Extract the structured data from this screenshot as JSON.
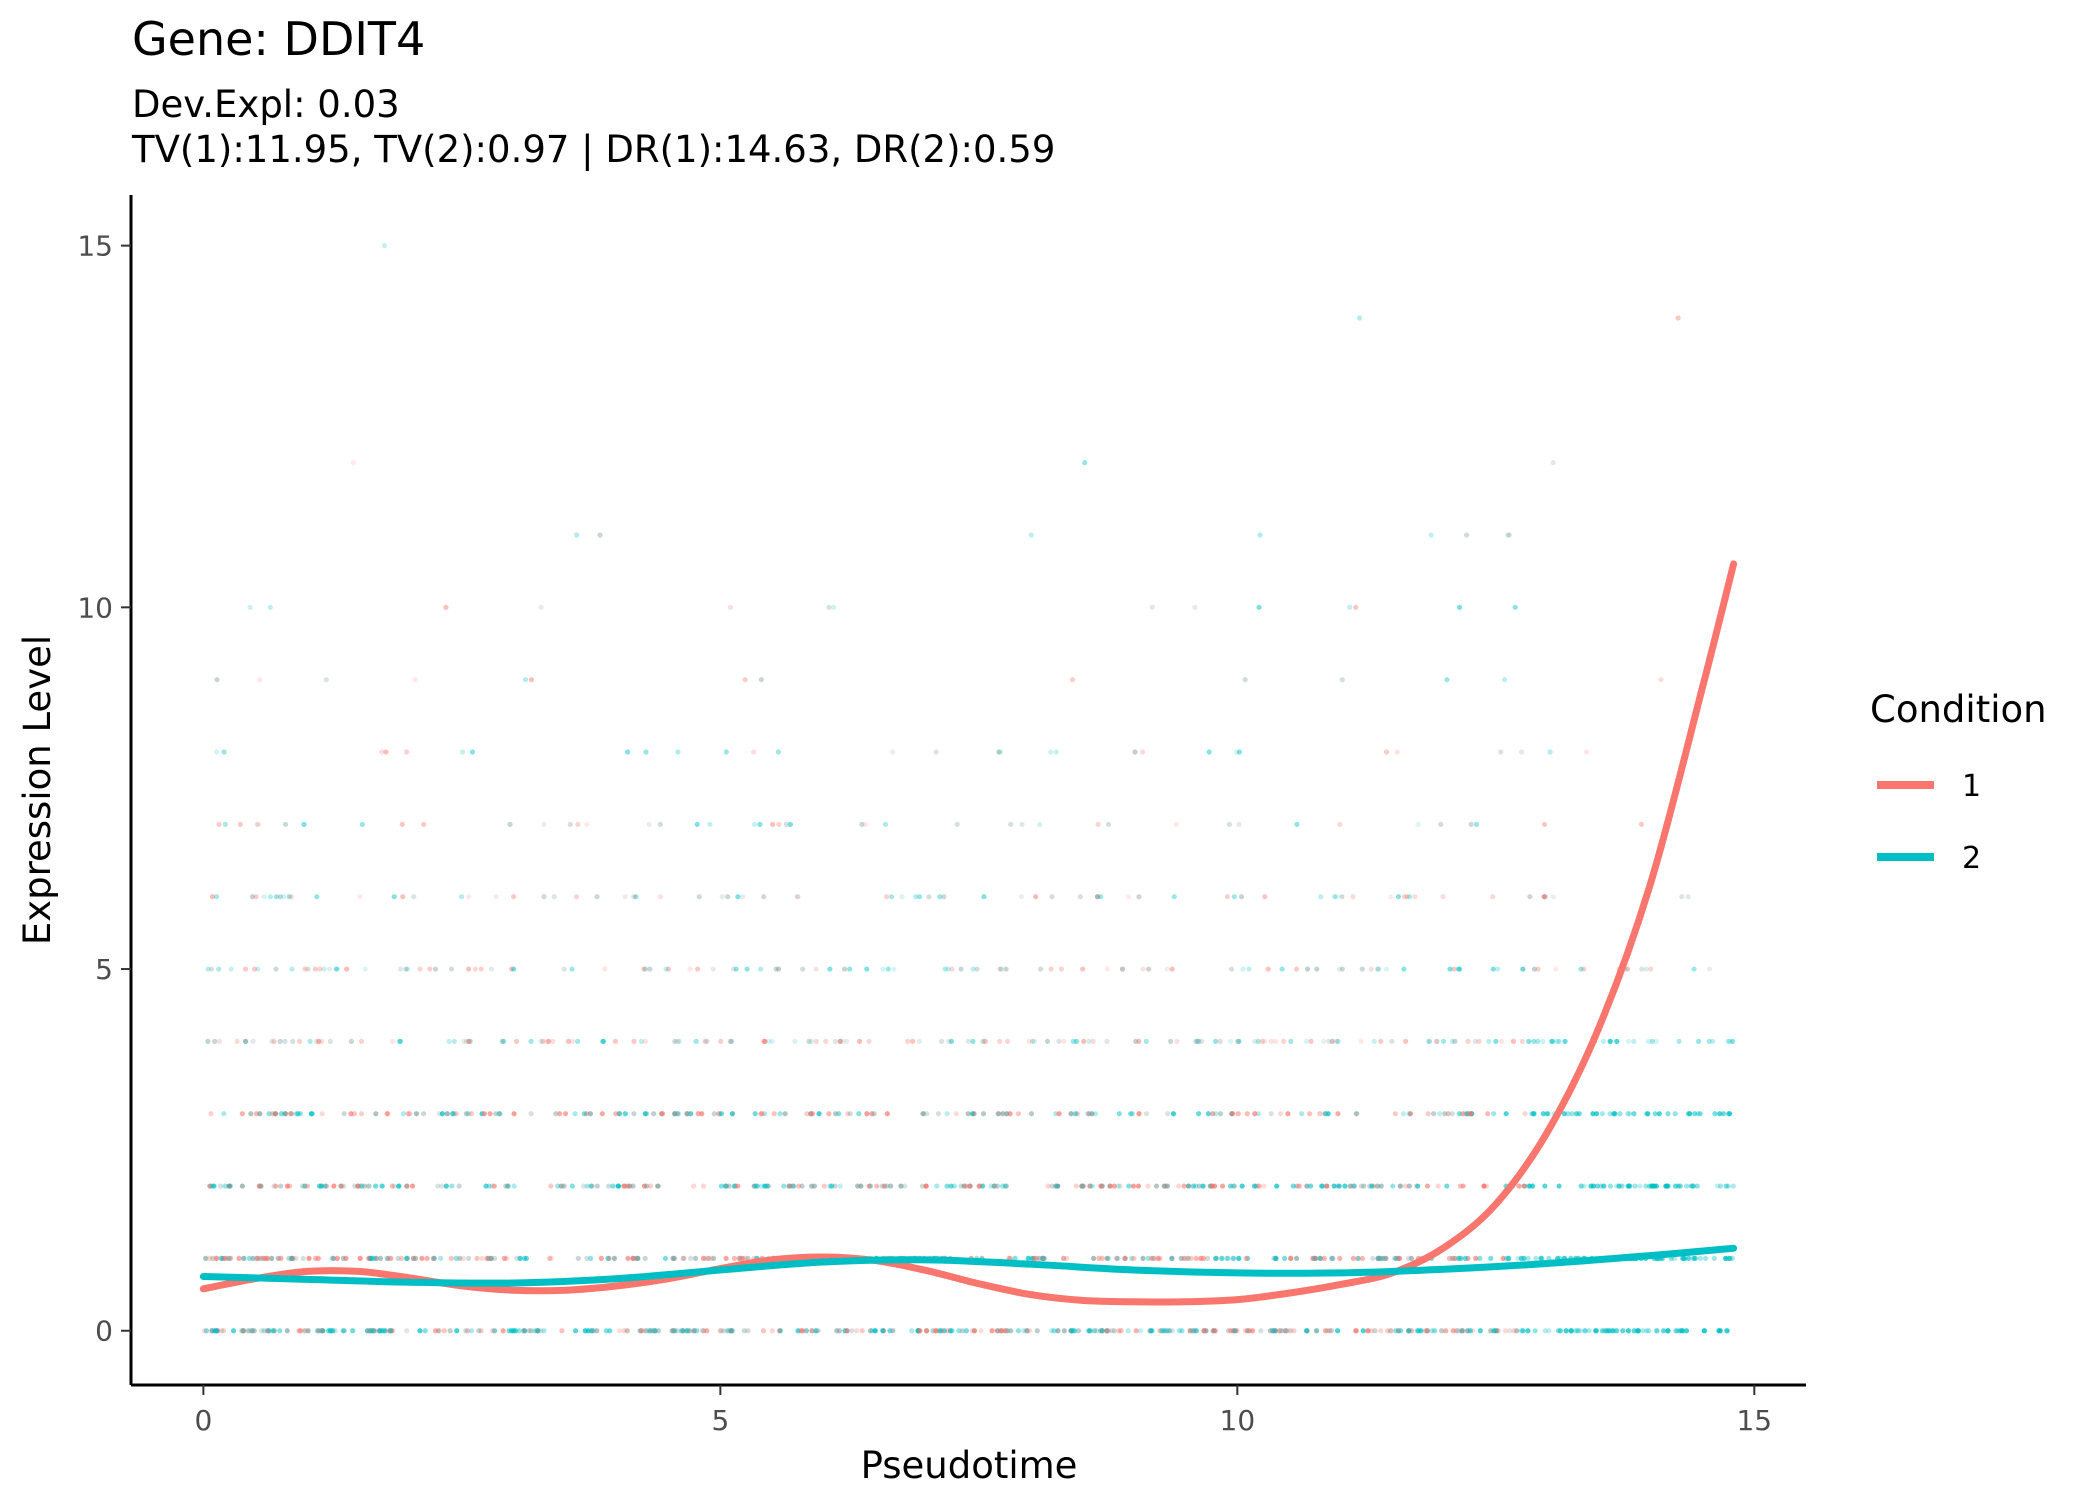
{
  "chart_data": {
    "type": "line",
    "title": "Gene: DDIT4",
    "subtitle_line1": "Dev.Expl: 0.03",
    "subtitle_line2": "TV(1):11.95, TV(2):0.97 | DR(1):14.63, DR(2):0.59",
    "xlabel": "Pseudotime",
    "ylabel": "Expression Level",
    "xlim": [
      -0.7,
      15.5
    ],
    "ylim": [
      -0.75,
      15.7
    ],
    "x_ticks": [
      0,
      5,
      10,
      15
    ],
    "y_ticks": [
      0,
      5,
      10,
      15
    ],
    "grid": false,
    "legend": {
      "title": "Condition",
      "position": "right"
    },
    "series": [
      {
        "name": "1",
        "color": "#F8766D",
        "x": [
          0,
          0.5,
          1.0,
          1.5,
          2.0,
          2.5,
          3.0,
          3.5,
          4.0,
          4.5,
          5.0,
          5.5,
          6.0,
          6.5,
          7.0,
          7.5,
          8.0,
          8.5,
          9.0,
          9.5,
          10.0,
          10.5,
          11.0,
          11.5,
          12.0,
          12.5,
          13.0,
          13.5,
          14.0,
          14.5,
          14.8
        ],
        "y": [
          0.58,
          0.72,
          0.82,
          0.82,
          0.73,
          0.62,
          0.56,
          0.56,
          0.62,
          0.72,
          0.86,
          0.98,
          1.02,
          0.97,
          0.83,
          0.65,
          0.5,
          0.42,
          0.4,
          0.4,
          0.43,
          0.52,
          0.64,
          0.8,
          1.15,
          1.75,
          2.75,
          4.2,
          6.2,
          8.9,
          10.6
        ]
      },
      {
        "name": "2",
        "color": "#00BFC4",
        "x": [
          0,
          1,
          2,
          3,
          4,
          5,
          6,
          7,
          8,
          9,
          10,
          11,
          12,
          13,
          14,
          14.8
        ],
        "y": [
          0.75,
          0.71,
          0.67,
          0.66,
          0.72,
          0.84,
          0.95,
          0.98,
          0.92,
          0.84,
          0.8,
          0.8,
          0.85,
          0.93,
          1.04,
          1.14
        ]
      }
    ],
    "point_levels": [
      0,
      1,
      2,
      3,
      4,
      5,
      6,
      7,
      8,
      9,
      10,
      11,
      12,
      14,
      15
    ]
  }
}
